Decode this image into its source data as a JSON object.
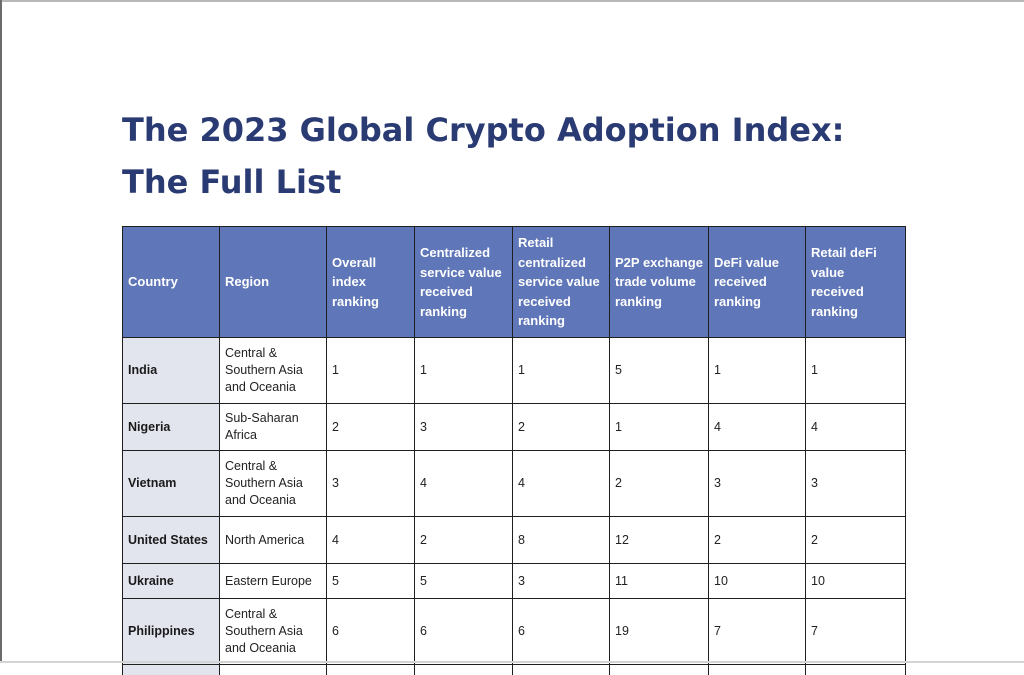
{
  "title": {
    "line1": "The 2023 Global Crypto Adoption Index:",
    "line2": "The Full List"
  },
  "table": {
    "headers": [
      "Country",
      "Region",
      "Overall index ranking",
      "Centralized service value received ranking",
      "Retail centralized service value received ranking",
      "P2P exchange trade volume ranking",
      "DeFi value received ranking",
      "Retail deFi value received ranking"
    ],
    "rows": [
      [
        "India",
        "Central & Southern Asia and Oceania",
        "1",
        "1",
        "1",
        "5",
        "1",
        "1"
      ],
      [
        "Nigeria",
        "Sub-Saharan Africa",
        "2",
        "3",
        "2",
        "1",
        "4",
        "4"
      ],
      [
        "Vietnam",
        "Central & Southern Asia and Oceania",
        "3",
        "4",
        "4",
        "2",
        "3",
        "3"
      ],
      [
        "United States",
        "North America",
        "4",
        "2",
        "8",
        "12",
        "2",
        "2"
      ],
      [
        "Ukraine",
        "Eastern Europe",
        "5",
        "5",
        "3",
        "11",
        "10",
        "10"
      ],
      [
        "Philippines",
        "Central & Southern Asia and Oceania",
        "6",
        "6",
        "6",
        "19",
        "7",
        "7"
      ]
    ]
  },
  "colors": {
    "title": "#2a3a72",
    "header_bg": "#5f76b8",
    "country_bg": "#e3e5ee"
  }
}
